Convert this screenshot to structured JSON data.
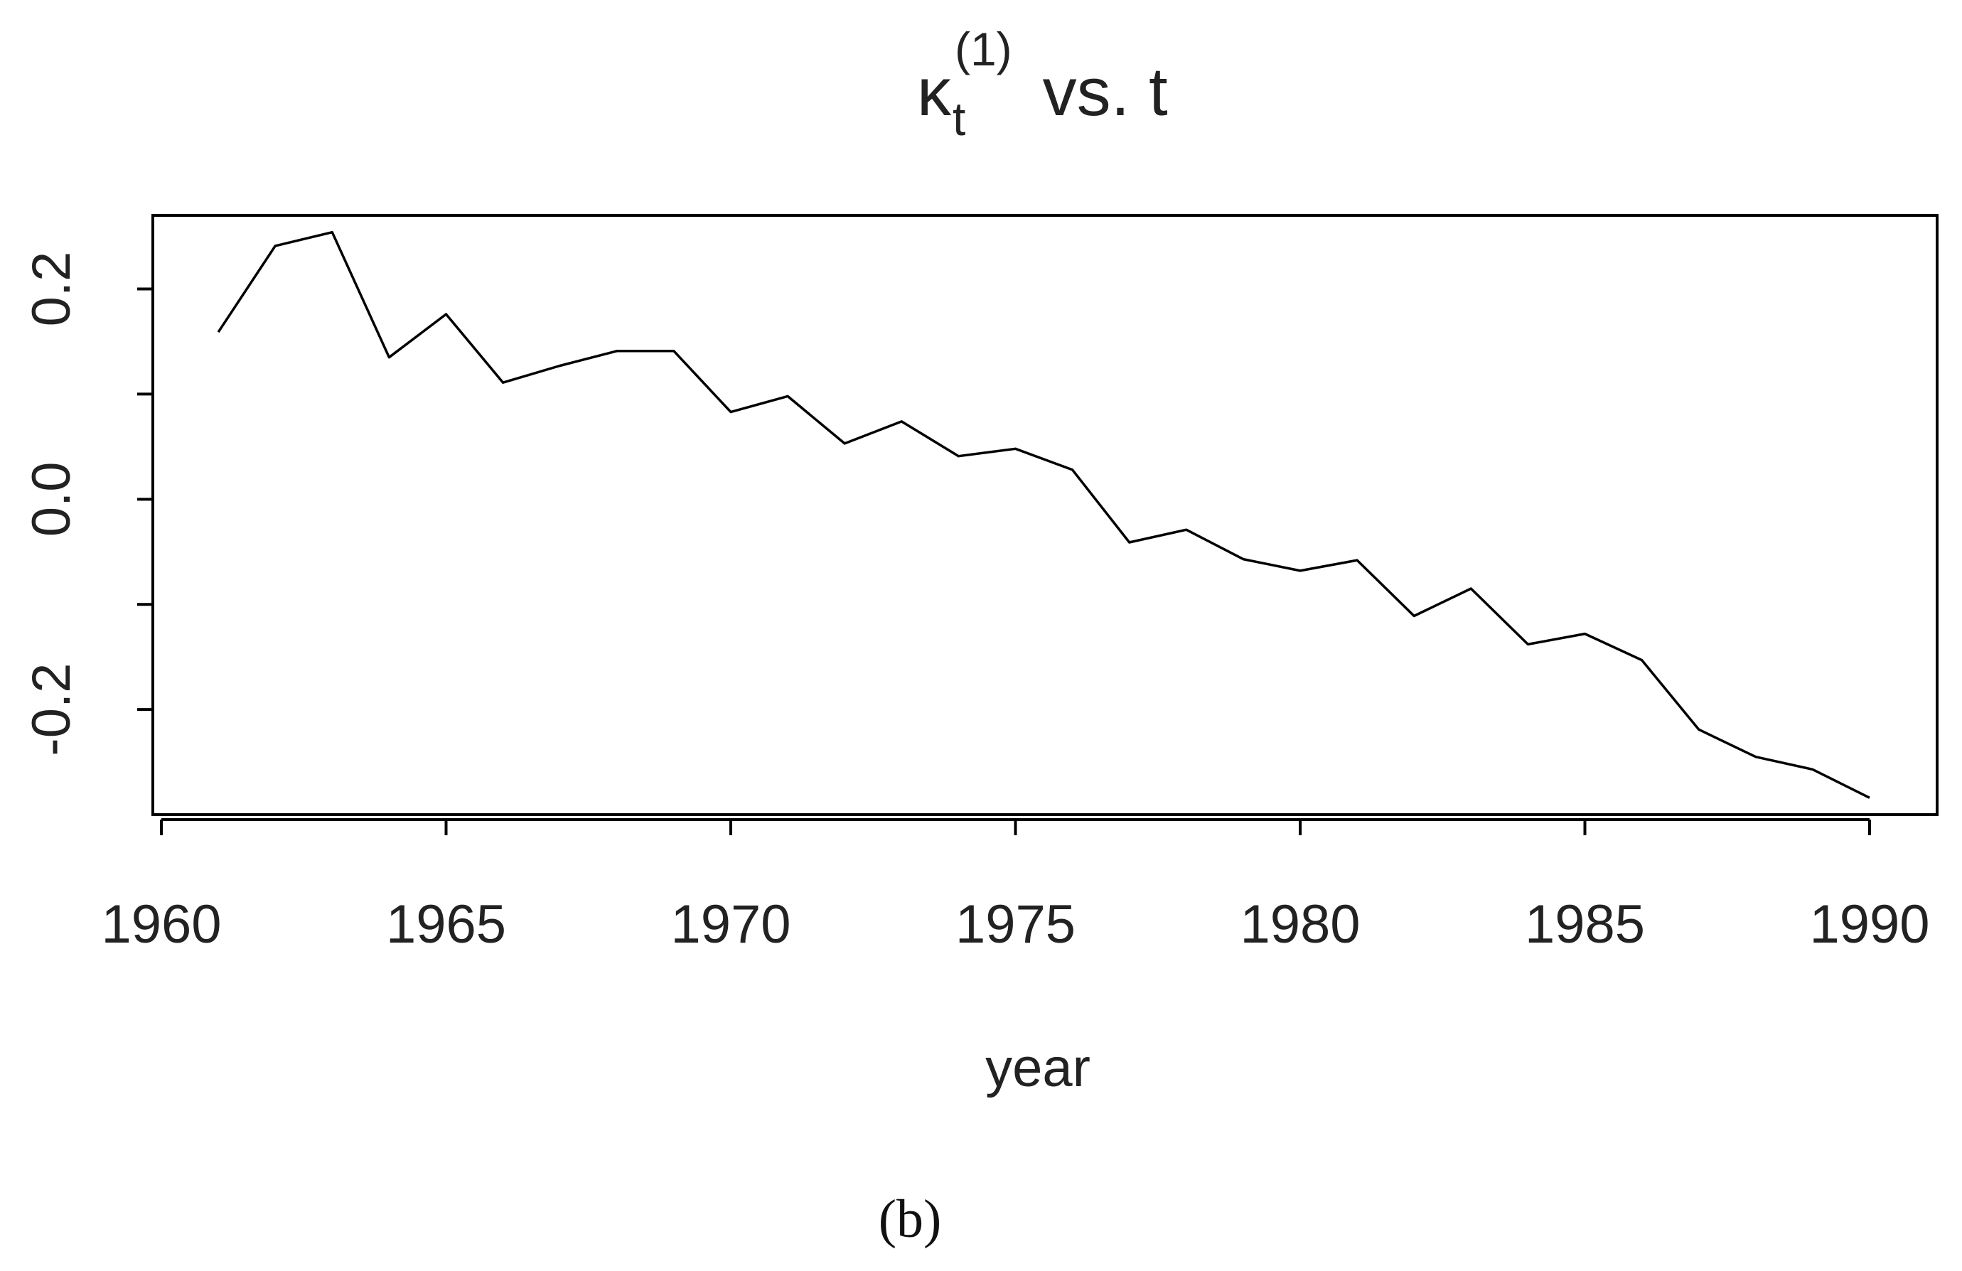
{
  "chart_data": {
    "type": "line",
    "title": {
      "symbol": "κ",
      "subscript": "t",
      "superscript": "(1)",
      "rest": " vs. t"
    },
    "xlabel": "year",
    "ylabel": "",
    "xlim": [
      1960,
      1990
    ],
    "ylim": [
      -0.3,
      0.27
    ],
    "xticks": [
      1960,
      1965,
      1970,
      1975,
      1980,
      1985,
      1990
    ],
    "xtick_labels": [
      "1960",
      "1965",
      "1970",
      "1975",
      "1980",
      "1985",
      "1990"
    ],
    "yticks": [
      -0.2,
      -0.1,
      0.0,
      0.1,
      0.2
    ],
    "ytick_labels": [
      "-0.2",
      "",
      "0.0",
      "",
      "0.2"
    ],
    "grid": false,
    "series": [
      {
        "x": [
          1961,
          1962,
          1963,
          1964,
          1965,
          1966,
          1967,
          1968,
          1969,
          1970,
          1971,
          1972,
          1973,
          1974,
          1975,
          1976,
          1977,
          1978,
          1979,
          1980,
          1981,
          1982,
          1983,
          1984,
          1985,
          1986,
          1987,
          1988,
          1989,
          1990
        ],
        "y": [
          0.159,
          0.241,
          0.254,
          0.135,
          0.176,
          0.111,
          0.127,
          0.141,
          0.141,
          0.083,
          0.098,
          0.053,
          0.074,
          0.041,
          0.048,
          0.028,
          -0.041,
          -0.029,
          -0.057,
          -0.068,
          -0.058,
          -0.111,
          -0.085,
          -0.138,
          -0.128,
          -0.153,
          -0.219,
          -0.245,
          -0.257,
          -0.284
        ],
        "color": "#000000"
      }
    ],
    "panel_label": "(b)"
  }
}
